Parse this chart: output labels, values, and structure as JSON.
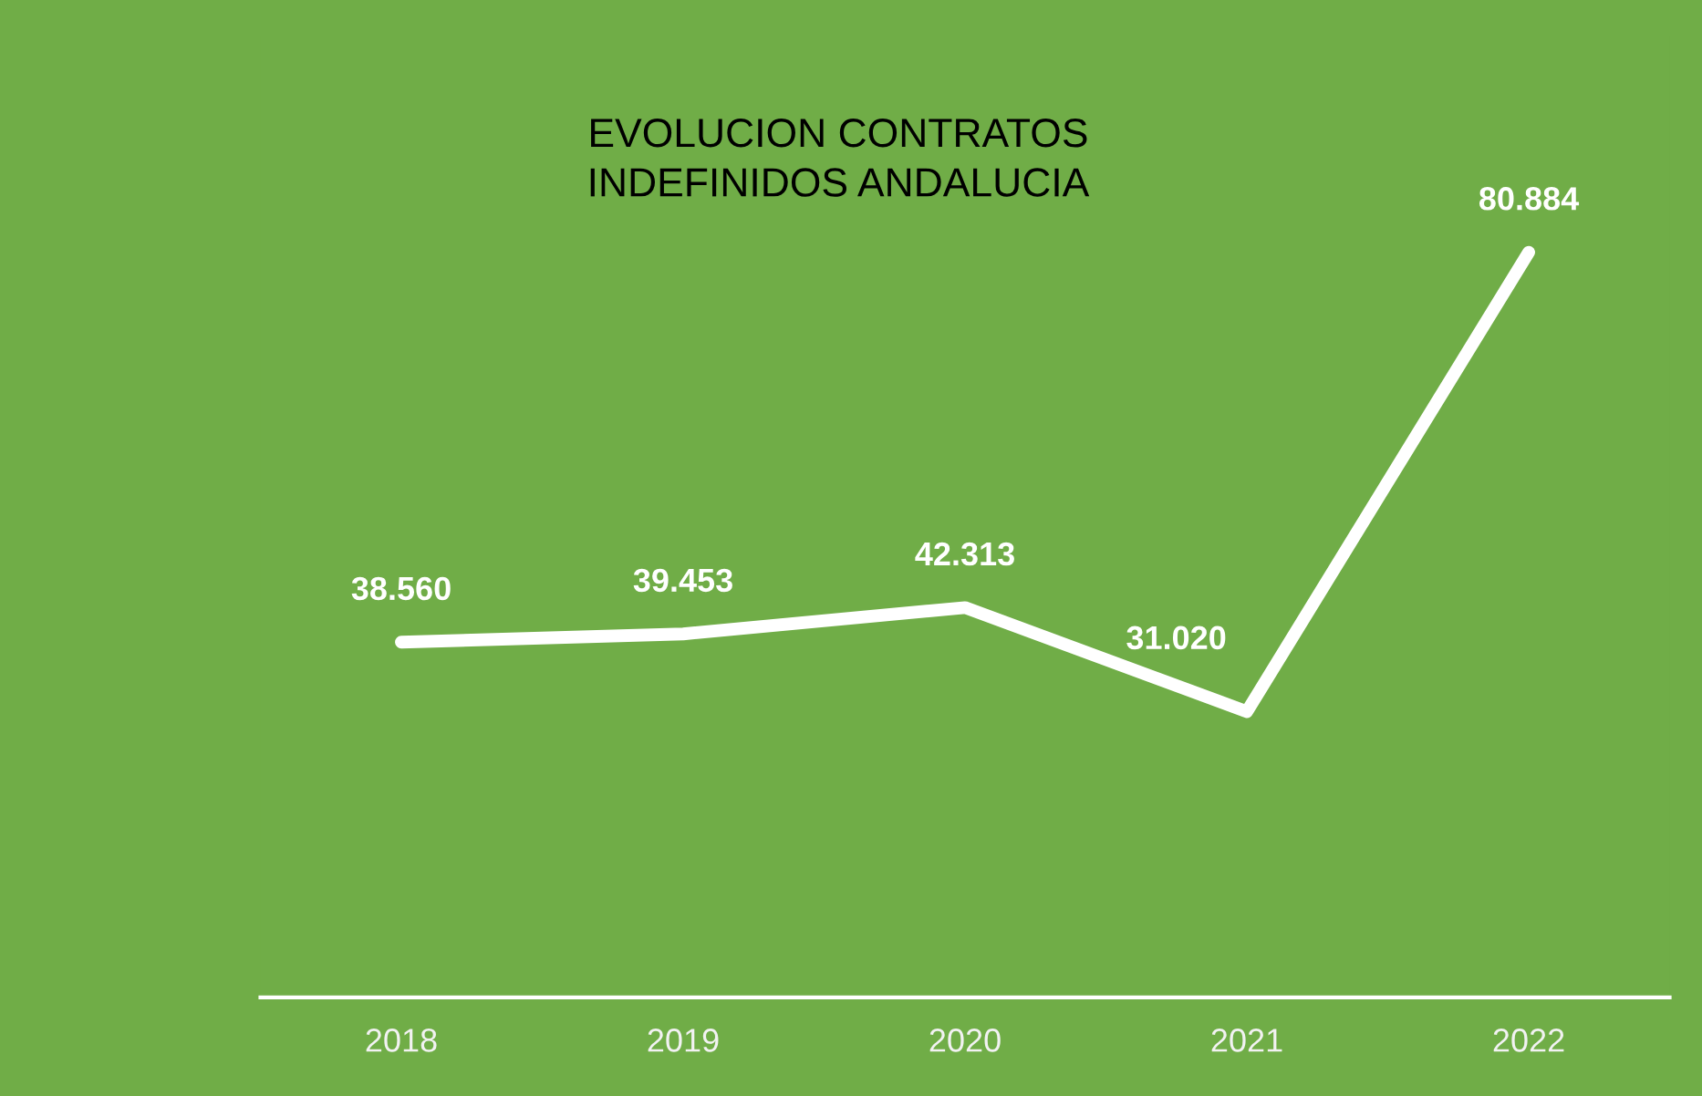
{
  "chart_data": {
    "type": "line",
    "title": "EVOLUCION CONTRATOS\nINDEFINIDOS ANDALUCIA",
    "categories": [
      "2018",
      "2019",
      "2020",
      "2021",
      "2022"
    ],
    "series": [
      {
        "color": "#ffffff",
        "values": [
          38560,
          39453,
          42313,
          31020,
          80884
        ],
        "value_labels": [
          "38.560",
          "39.453",
          "42.313",
          "31.020",
          "80.884"
        ]
      }
    ],
    "grid": false,
    "legend": false,
    "marker": "none",
    "line_style": "solid",
    "tick_labels": "x"
  }
}
